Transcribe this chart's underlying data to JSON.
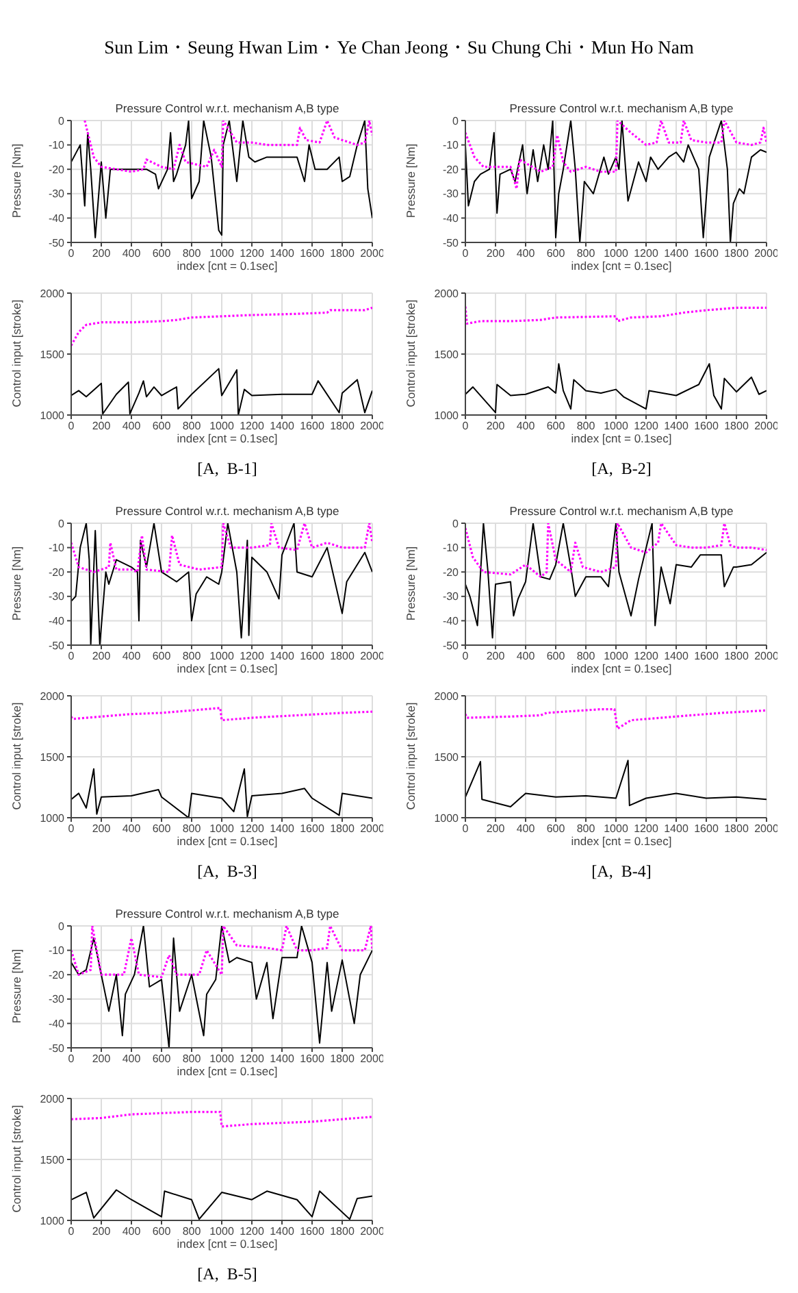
{
  "chart_data": [
    {
      "type": "line",
      "title": "Pressure Control w.r.t. mechanism A,B type",
      "xlabel": "index [cnt = 0.1sec]",
      "ylabel": "Pressure [Nm]",
      "annotations": [
        "Sun Lim・Seung Hwan Lim・Ye Chan Jeong・Su Chung Chi・Mun Ho Nam"
      ],
      "xlim": [
        0,
        2000
      ],
      "xticks": [
        0,
        200,
        400,
        600,
        800,
        1000,
        1200,
        1400,
        1600,
        1800,
        2000
      ],
      "ylim": [
        -50,
        0
      ],
      "yticks": [
        -50,
        -40,
        -30,
        -20,
        -10,
        0
      ],
      "grid": true,
      "series": [
        {
          "color": "#000000",
          "line_style": "solid",
          "x": [
            0,
            60,
            90,
            110,
            130,
            160,
            200,
            230,
            260,
            300,
            500,
            560,
            580,
            640,
            660,
            680,
            700,
            760,
            780,
            800,
            850,
            880,
            930,
            980,
            1000,
            1010,
            1050,
            1100,
            1140,
            1180,
            1220,
            1300,
            1500,
            1550,
            1580,
            1620,
            1700,
            1780,
            1800,
            1850,
            1900,
            1950,
            1970,
            2000
          ],
          "values": [
            -17,
            -10,
            -35,
            -5,
            -20,
            -48,
            -17,
            -40,
            -20,
            -20,
            -20,
            -22,
            -28,
            -20,
            -5,
            -25,
            -22,
            -10,
            0,
            -32,
            -25,
            0,
            -15,
            -45,
            -47,
            -10,
            0,
            -25,
            0,
            -15,
            -17,
            -15,
            -15,
            -25,
            -10,
            -20,
            -20,
            -15,
            -25,
            -23,
            -10,
            0,
            -28,
            -40
          ]
        },
        {
          "color": "#ff00ff",
          "line_style": "dotted",
          "x": [
            90,
            150,
            200,
            300,
            400,
            480,
            500,
            600,
            680,
            720,
            760,
            900,
            950,
            1000,
            1010,
            1100,
            1200,
            1300,
            1500,
            1520,
            1560,
            1650,
            1700,
            1750,
            1900,
            1950,
            1980,
            2000
          ],
          "values": [
            0,
            -15,
            -19,
            -20,
            -21,
            -20,
            -16,
            -19,
            -20,
            -10,
            -17,
            -19,
            -12,
            -19,
            0,
            -9,
            -9,
            -10,
            -10,
            -3,
            -8,
            -9,
            0,
            -7,
            -10,
            -9,
            0,
            -6
          ]
        }
      ]
    },
    {
      "type": "line",
      "xlabel": "index [cnt = 0.1sec]",
      "ylabel": "Control input [stroke]",
      "annotations": [
        "[A,  B-1]"
      ],
      "xlim": [
        0,
        2000
      ],
      "xticks": [
        0,
        200,
        400,
        600,
        800,
        1000,
        1200,
        1400,
        1600,
        1800,
        2000
      ],
      "ylim": [
        1000,
        2000
      ],
      "yticks": [
        1000,
        1500,
        2000
      ],
      "grid": true,
      "series": [
        {
          "color": "#000000",
          "line_style": "solid",
          "x": [
            0,
            50,
            100,
            200,
            210,
            300,
            380,
            390,
            450,
            480,
            500,
            550,
            600,
            700,
            710,
            800,
            980,
            1000,
            1100,
            1110,
            1150,
            1200,
            1400,
            1600,
            1640,
            1780,
            1800,
            1900,
            1950,
            2000
          ],
          "values": [
            1160,
            1200,
            1150,
            1260,
            1010,
            1170,
            1270,
            1010,
            1180,
            1280,
            1150,
            1230,
            1160,
            1230,
            1050,
            1170,
            1380,
            1160,
            1370,
            1000,
            1210,
            1160,
            1170,
            1170,
            1280,
            1020,
            1180,
            1290,
            1020,
            1200
          ]
        },
        {
          "color": "#ff00ff",
          "line_style": "dotted",
          "x": [
            0,
            50,
            100,
            200,
            400,
            600,
            700,
            800,
            1000,
            1200,
            1500,
            1700,
            1720,
            1950,
            2000
          ],
          "values": [
            1570,
            1680,
            1740,
            1760,
            1760,
            1770,
            1780,
            1800,
            1810,
            1820,
            1830,
            1840,
            1860,
            1860,
            1880
          ]
        }
      ]
    },
    {
      "type": "line",
      "title": "Pressure Control w.r.t. mechanism A,B type",
      "xlabel": "index [cnt = 0.1sec]",
      "ylabel": "Pressure [Nm]",
      "xlim": [
        0,
        2000
      ],
      "xticks": [
        0,
        200,
        400,
        600,
        800,
        1000,
        1200,
        1400,
        1600,
        1800,
        2000
      ],
      "ylim": [
        -50,
        0
      ],
      "yticks": [
        -50,
        -40,
        -30,
        -20,
        -10,
        0
      ],
      "grid": true,
      "series": [
        {
          "color": "#000000",
          "line_style": "solid",
          "x": [
            0,
            20,
            60,
            100,
            160,
            190,
            210,
            230,
            300,
            330,
            380,
            410,
            450,
            480,
            520,
            550,
            580,
            600,
            620,
            650,
            700,
            730,
            760,
            790,
            850,
            920,
            950,
            1000,
            1020,
            1040,
            1080,
            1150,
            1200,
            1230,
            1280,
            1350,
            1400,
            1450,
            1480,
            1550,
            1580,
            1620,
            1700,
            1740,
            1760,
            1780,
            1820,
            1850,
            1900,
            1960,
            2000
          ],
          "values": [
            -10,
            -35,
            -25,
            -22,
            -20,
            -5,
            -38,
            -22,
            -20,
            -25,
            -10,
            -30,
            -12,
            -25,
            -10,
            -20,
            0,
            -48,
            -30,
            -20,
            0,
            -20,
            -50,
            -25,
            -30,
            -15,
            -22,
            -15,
            -20,
            0,
            -33,
            -17,
            -25,
            -15,
            -20,
            -15,
            -13,
            -17,
            -10,
            -20,
            -48,
            -15,
            0,
            -20,
            -50,
            -34,
            -28,
            -30,
            -15,
            -12,
            -13
          ]
        },
        {
          "color": "#ff00ff",
          "line_style": "dotted",
          "x": [
            0,
            60,
            120,
            300,
            340,
            360,
            500,
            580,
            610,
            650,
            700,
            800,
            900,
            1000,
            1010,
            1100,
            1200,
            1270,
            1300,
            1350,
            1430,
            1450,
            1500,
            1600,
            1700,
            1720,
            1800,
            1900,
            1960,
            1980,
            2000
          ],
          "values": [
            -5,
            -15,
            -19,
            -19,
            -28,
            -16,
            -21,
            -19,
            -6,
            -17,
            -21,
            -19,
            -21,
            -21,
            0,
            -5,
            -10,
            -9,
            0,
            -9,
            -9,
            0,
            -8,
            -9,
            -9,
            0,
            -9,
            -10,
            -9,
            -3,
            -9
          ]
        }
      ]
    },
    {
      "type": "line",
      "xlabel": "index [cnt = 0.1sec]",
      "ylabel": "Control input [stroke]",
      "annotations": [
        "[A,  B-2]"
      ],
      "xlim": [
        0,
        2000
      ],
      "xticks": [
        0,
        200,
        400,
        600,
        800,
        1000,
        1200,
        1400,
        1600,
        1800,
        2000
      ],
      "ylim": [
        1000,
        2000
      ],
      "yticks": [
        1000,
        1500,
        2000
      ],
      "grid": true,
      "series": [
        {
          "color": "#000000",
          "line_style": "solid",
          "x": [
            0,
            50,
            200,
            210,
            300,
            400,
            550,
            600,
            620,
            650,
            700,
            720,
            800,
            900,
            1000,
            1050,
            1200,
            1220,
            1400,
            1550,
            1620,
            1650,
            1700,
            1720,
            1800,
            1900,
            1950,
            2000
          ],
          "values": [
            1170,
            1230,
            1020,
            1250,
            1160,
            1170,
            1230,
            1180,
            1420,
            1200,
            1050,
            1290,
            1200,
            1180,
            1210,
            1150,
            1050,
            1200,
            1160,
            1250,
            1420,
            1160,
            1050,
            1300,
            1190,
            1310,
            1170,
            1200
          ]
        },
        {
          "color": "#ff00ff",
          "line_style": "dotted",
          "x": [
            0,
            10,
            100,
            300,
            500,
            600,
            1000,
            1010,
            1100,
            1300,
            1450,
            1600,
            1800,
            2000
          ],
          "values": [
            1890,
            1750,
            1770,
            1770,
            1780,
            1800,
            1810,
            1770,
            1800,
            1810,
            1840,
            1860,
            1880,
            1880
          ]
        }
      ]
    },
    {
      "type": "line",
      "title": "Pressure Control w.r.t. mechanism A,B type",
      "xlabel": "index [cnt = 0.1sec]",
      "ylabel": "Pressure [Nm]",
      "xlim": [
        0,
        2000
      ],
      "xticks": [
        0,
        200,
        400,
        600,
        800,
        1000,
        1200,
        1400,
        1600,
        1800,
        2000
      ],
      "ylim": [
        -50,
        0
      ],
      "yticks": [
        -50,
        -40,
        -30,
        -20,
        -10,
        0
      ],
      "grid": true,
      "series": [
        {
          "color": "#000000",
          "line_style": "solid",
          "x": [
            0,
            30,
            60,
            100,
            120,
            130,
            160,
            190,
            230,
            250,
            300,
            400,
            440,
            450,
            460,
            500,
            550,
            600,
            700,
            780,
            800,
            830,
            900,
            980,
            1000,
            1040,
            1100,
            1130,
            1170,
            1180,
            1200,
            1300,
            1380,
            1400,
            1480,
            1500,
            1600,
            1700,
            1800,
            1830,
            1900,
            1950,
            2000
          ],
          "values": [
            -32,
            -30,
            -10,
            0,
            -15,
            -50,
            -3,
            -50,
            -20,
            -25,
            -15,
            -18,
            -20,
            -40,
            -7,
            -18,
            0,
            -20,
            -24,
            -20,
            -40,
            -29,
            -22,
            -25,
            -20,
            0,
            -20,
            -47,
            -7,
            -46,
            -14,
            -20,
            -31,
            -13,
            0,
            -20,
            -22,
            -10,
            -37,
            -24,
            -17,
            -12,
            -20
          ]
        },
        {
          "color": "#ff00ff",
          "line_style": "dotted",
          "x": [
            0,
            50,
            150,
            250,
            260,
            300,
            400,
            440,
            470,
            500,
            650,
            670,
            720,
            850,
            1000,
            1010,
            1060,
            1200,
            1320,
            1330,
            1380,
            1500,
            1550,
            1600,
            1700,
            1800,
            1950,
            1980,
            2000
          ],
          "values": [
            -8,
            -18,
            -20,
            -18,
            -8,
            -19,
            -19,
            -20,
            -5,
            -19,
            -20,
            -5,
            -17,
            -19,
            -18,
            0,
            -10,
            -10,
            -9,
            0,
            -10,
            -11,
            0,
            -10,
            -8,
            -10,
            -10,
            0,
            -8
          ]
        }
      ]
    },
    {
      "type": "line",
      "xlabel": "index [cnt = 0.1sec]",
      "ylabel": "Control input [stroke]",
      "annotations": [
        "[A,  B-3]"
      ],
      "xlim": [
        0,
        2000
      ],
      "xticks": [
        0,
        200,
        400,
        600,
        800,
        1000,
        1200,
        1400,
        1600,
        1800,
        2000
      ],
      "ylim": [
        1000,
        2000
      ],
      "yticks": [
        1000,
        1500,
        2000
      ],
      "grid": true,
      "series": [
        {
          "color": "#000000",
          "line_style": "solid",
          "x": [
            0,
            50,
            100,
            150,
            170,
            200,
            400,
            580,
            600,
            780,
            800,
            1000,
            1080,
            1150,
            1170,
            1200,
            1400,
            1550,
            1600,
            1780,
            1800,
            2000
          ],
          "values": [
            1150,
            1200,
            1080,
            1400,
            1030,
            1170,
            1180,
            1230,
            1170,
            1000,
            1200,
            1160,
            1050,
            1400,
            1010,
            1180,
            1200,
            1240,
            1160,
            1020,
            1200,
            1160
          ]
        },
        {
          "color": "#ff00ff",
          "line_style": "dotted",
          "x": [
            0,
            10,
            200,
            400,
            600,
            800,
            990,
            1000,
            1200,
            1500,
            1800,
            2000
          ],
          "values": [
            1830,
            1810,
            1830,
            1850,
            1860,
            1880,
            1900,
            1800,
            1820,
            1840,
            1860,
            1870
          ]
        }
      ]
    },
    {
      "type": "line",
      "title": "Pressure Control w.r.t. mechanism A,B type",
      "xlabel": "index [cnt = 0.1sec]",
      "ylabel": "Pressure [Nm]",
      "xlim": [
        0,
        2000
      ],
      "xticks": [
        0,
        200,
        400,
        600,
        800,
        1000,
        1200,
        1400,
        1600,
        1800,
        2000
      ],
      "ylim": [
        -50,
        0
      ],
      "yticks": [
        -50,
        -40,
        -30,
        -20,
        -10,
        0
      ],
      "grid": true,
      "series": [
        {
          "color": "#000000",
          "line_style": "solid",
          "x": [
            0,
            30,
            80,
            120,
            150,
            180,
            200,
            300,
            320,
            350,
            400,
            450,
            500,
            560,
            600,
            650,
            700,
            730,
            800,
            900,
            950,
            1000,
            1020,
            1100,
            1150,
            1240,
            1260,
            1300,
            1360,
            1400,
            1500,
            1560,
            1700,
            1720,
            1780,
            1800,
            1900,
            2000
          ],
          "values": [
            -25,
            -30,
            -42,
            0,
            -20,
            -47,
            -25,
            -24,
            -38,
            -31,
            -24,
            0,
            -22,
            -23,
            -17,
            0,
            -18,
            -30,
            -22,
            -22,
            -26,
            0,
            -20,
            -38,
            -23,
            0,
            -42,
            -18,
            -33,
            -17,
            -18,
            -13,
            -13,
            -26,
            -18,
            -18,
            -17,
            -12
          ]
        },
        {
          "color": "#ff00ff",
          "line_style": "dotted",
          "x": [
            0,
            50,
            120,
            300,
            400,
            500,
            540,
            550,
            600,
            700,
            730,
            780,
            900,
            1000,
            1010,
            1100,
            1200,
            1280,
            1300,
            1400,
            1500,
            1600,
            1700,
            1720,
            1760,
            1800,
            1900,
            2000
          ],
          "values": [
            -2,
            -14,
            -20,
            -21,
            -17,
            -22,
            -20,
            0,
            -15,
            -20,
            -8,
            -18,
            -20,
            -18,
            0,
            -10,
            -12,
            -8,
            0,
            -9,
            -10,
            -10,
            -9,
            0,
            -9,
            -10,
            -10,
            -11
          ]
        }
      ]
    },
    {
      "type": "line",
      "xlabel": "index [cnt = 0.1sec]",
      "ylabel": "Control input [stroke]",
      "annotations": [
        "[A,  B-4]"
      ],
      "xlim": [
        0,
        2000
      ],
      "xticks": [
        0,
        200,
        400,
        600,
        800,
        1000,
        1200,
        1400,
        1600,
        1800,
        2000
      ],
      "ylim": [
        1000,
        2000
      ],
      "yticks": [
        1000,
        1500,
        2000
      ],
      "grid": true,
      "series": [
        {
          "color": "#000000",
          "line_style": "solid",
          "x": [
            0,
            100,
            110,
            300,
            400,
            600,
            800,
            1000,
            1080,
            1090,
            1200,
            1400,
            1600,
            1800,
            2000
          ],
          "values": [
            1170,
            1460,
            1150,
            1090,
            1200,
            1170,
            1180,
            1160,
            1470,
            1100,
            1160,
            1200,
            1160,
            1170,
            1150
          ]
        },
        {
          "color": "#ff00ff",
          "line_style": "dotted",
          "x": [
            0,
            10,
            300,
            500,
            540,
            900,
            990,
            1010,
            1100,
            1400,
            1700,
            2000
          ],
          "values": [
            1850,
            1820,
            1830,
            1840,
            1860,
            1890,
            1890,
            1730,
            1800,
            1830,
            1860,
            1880
          ]
        }
      ]
    },
    {
      "type": "line",
      "title": "Pressure Control w.r.t. mechanism A,B type",
      "xlabel": "index [cnt = 0.1sec]",
      "ylabel": "Pressure [Nm]",
      "xlim": [
        0,
        2000
      ],
      "xticks": [
        0,
        200,
        400,
        600,
        800,
        1000,
        1200,
        1400,
        1600,
        1800,
        2000
      ],
      "ylim": [
        -50,
        0
      ],
      "yticks": [
        -50,
        -40,
        -30,
        -20,
        -10,
        0
      ],
      "grid": true,
      "series": [
        {
          "color": "#000000",
          "line_style": "solid",
          "x": [
            0,
            50,
            100,
            150,
            200,
            250,
            300,
            340,
            360,
            420,
            480,
            520,
            600,
            650,
            680,
            720,
            800,
            880,
            900,
            960,
            1000,
            1050,
            1100,
            1200,
            1230,
            1300,
            1340,
            1400,
            1500,
            1530,
            1600,
            1650,
            1700,
            1730,
            1800,
            1880,
            1920,
            2000
          ],
          "values": [
            -15,
            -20,
            -18,
            -5,
            -20,
            -35,
            -20,
            -45,
            -28,
            -20,
            0,
            -25,
            -22,
            -50,
            -5,
            -35,
            -20,
            -45,
            -28,
            -22,
            0,
            -15,
            -13,
            -15,
            -30,
            -15,
            -38,
            -13,
            -13,
            0,
            -15,
            -48,
            -15,
            -35,
            -14,
            -40,
            -20,
            -10
          ]
        },
        {
          "color": "#ff00ff",
          "line_style": "dotted",
          "x": [
            0,
            50,
            130,
            140,
            200,
            350,
            400,
            450,
            600,
            650,
            700,
            850,
            900,
            1000,
            1010,
            1100,
            1300,
            1400,
            1430,
            1500,
            1600,
            1700,
            1720,
            1800,
            1950,
            1990,
            2000
          ],
          "values": [
            -10,
            -20,
            -18,
            0,
            -20,
            -20,
            -5,
            -20,
            -21,
            -12,
            -20,
            -20,
            -10,
            -20,
            0,
            -8,
            -9,
            -10,
            0,
            -10,
            -10,
            -9,
            0,
            -10,
            -10,
            0,
            -10
          ]
        }
      ]
    },
    {
      "type": "line",
      "xlabel": "index [cnt = 0.1sec]",
      "ylabel": "Control input [stroke]",
      "annotations": [
        "[A,  B-5]"
      ],
      "xlim": [
        0,
        2000
      ],
      "xticks": [
        0,
        200,
        400,
        600,
        800,
        1000,
        1200,
        1400,
        1600,
        1800,
        2000
      ],
      "ylim": [
        1000,
        2000
      ],
      "yticks": [
        1000,
        1500,
        2000
      ],
      "grid": true,
      "series": [
        {
          "color": "#000000",
          "line_style": "solid",
          "x": [
            0,
            100,
            150,
            300,
            400,
            600,
            620,
            800,
            850,
            1000,
            1200,
            1300,
            1500,
            1600,
            1650,
            1850,
            1900,
            2000
          ],
          "values": [
            1170,
            1230,
            1020,
            1250,
            1170,
            1030,
            1240,
            1170,
            1010,
            1230,
            1170,
            1240,
            1170,
            1030,
            1240,
            1010,
            1180,
            1200
          ]
        },
        {
          "color": "#ff00ff",
          "line_style": "dotted",
          "x": [
            0,
            200,
            400,
            600,
            800,
            990,
            1000,
            1200,
            1400,
            1600,
            1800,
            2000
          ],
          "values": [
            1830,
            1840,
            1870,
            1880,
            1890,
            1890,
            1770,
            1790,
            1800,
            1810,
            1830,
            1850
          ]
        }
      ]
    }
  ]
}
